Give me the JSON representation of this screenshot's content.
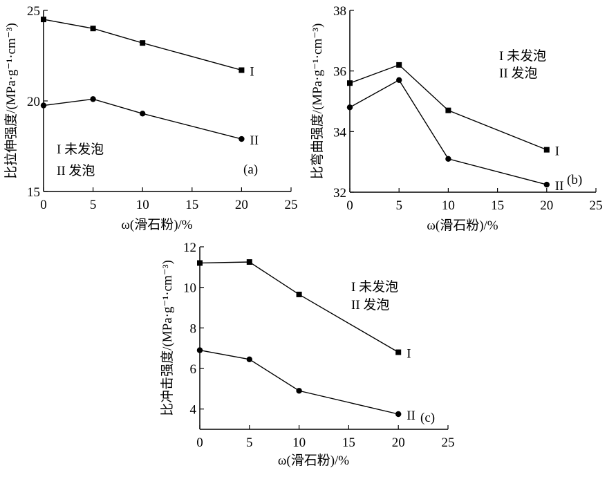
{
  "chart_data": [
    {
      "type": "line",
      "panel_label": "(a)",
      "xlabel": "ω(滑石粉)/%",
      "ylabel": "比拉伸强度/(MPa·g⁻¹·cm⁻³)",
      "xlim": [
        0,
        25
      ],
      "ylim": [
        15,
        25
      ],
      "xticks": [
        0,
        5,
        10,
        15,
        20,
        25
      ],
      "yticks": [
        15,
        20,
        25
      ],
      "x": [
        0,
        5,
        10,
        20
      ],
      "series": [
        {
          "name": "I",
          "legend": "I 未发泡",
          "marker": "square",
          "values": [
            24.5,
            24.0,
            23.2,
            21.7
          ]
        },
        {
          "name": "II",
          "legend": "II 发泡",
          "marker": "circle",
          "values": [
            19.75,
            20.1,
            19.3,
            17.9
          ]
        }
      ],
      "legend_placement": "bottom-left",
      "grid": false,
      "color": "#000000"
    },
    {
      "type": "line",
      "panel_label": "(b)",
      "xlabel": "ω(滑石粉)/%",
      "ylabel": "比弯曲强度/(MPa·g⁻¹·cm⁻³)",
      "xlim": [
        0,
        25
      ],
      "ylim": [
        32,
        38
      ],
      "xticks": [
        0,
        5,
        10,
        15,
        20,
        25
      ],
      "yticks": [
        32,
        34,
        36,
        38
      ],
      "x": [
        0,
        5,
        10,
        20
      ],
      "series": [
        {
          "name": "I",
          "legend": "I 未发泡",
          "marker": "square",
          "values": [
            35.6,
            36.2,
            34.7,
            33.4
          ]
        },
        {
          "name": "II",
          "legend": "II 发泡",
          "marker": "circle",
          "values": [
            34.8,
            35.7,
            33.1,
            32.25
          ]
        }
      ],
      "legend_placement": "top-right",
      "grid": false,
      "color": "#000000"
    },
    {
      "type": "line",
      "panel_label": "(c)",
      "xlabel": "ω(滑石粉)/%",
      "ylabel": "比冲击强度/(MPa·g⁻¹·cm⁻³)",
      "xlim": [
        0,
        25
      ],
      "ylim": [
        3,
        12
      ],
      "xticks": [
        0,
        5,
        10,
        15,
        20,
        25
      ],
      "yticks": [
        4,
        6,
        8,
        10,
        12
      ],
      "x": [
        0,
        5,
        10,
        20
      ],
      "series": [
        {
          "name": "I",
          "legend": "I 未发泡",
          "marker": "square",
          "values": [
            11.2,
            11.25,
            9.65,
            6.8
          ]
        },
        {
          "name": "II",
          "legend": "II 发泡",
          "marker": "circle",
          "values": [
            6.9,
            6.45,
            4.9,
            3.75
          ]
        }
      ],
      "legend_placement": "top-right",
      "grid": false,
      "color": "#000000"
    }
  ]
}
